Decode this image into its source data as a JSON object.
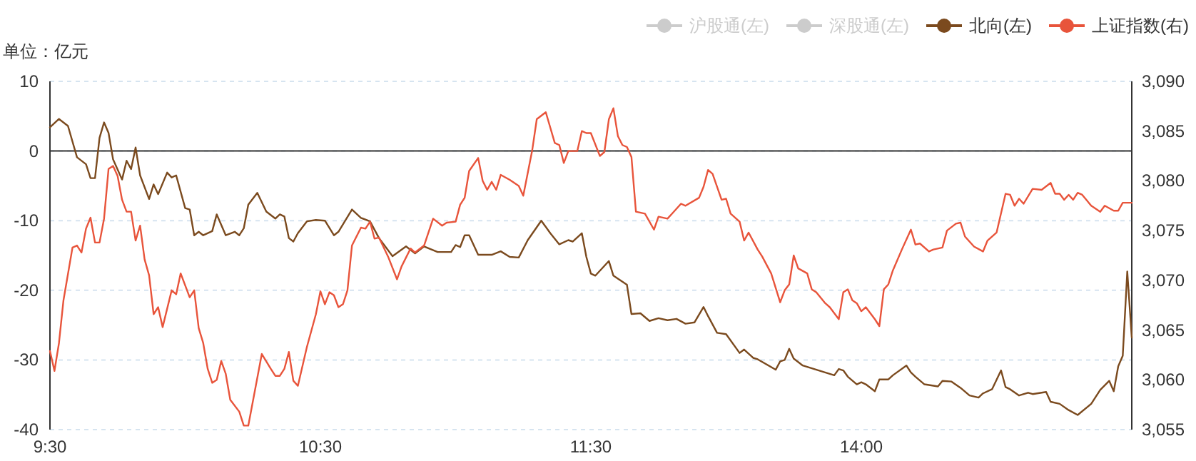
{
  "chart_data": {
    "type": "line",
    "ylabel": "单位：亿元",
    "legend": "top right",
    "grid": "y",
    "categories": [
      "9:30",
      null,
      null,
      null,
      null,
      null,
      null,
      null,
      null,
      null,
      null,
      null,
      null,
      null,
      null,
      null,
      null,
      null,
      null,
      null,
      null,
      null,
      null,
      null,
      null,
      null,
      null,
      null,
      null,
      null,
      null,
      null,
      null,
      null,
      null,
      null,
      null,
      null,
      null,
      null,
      null,
      null,
      null,
      null,
      null,
      null,
      null,
      null,
      null,
      null,
      null,
      null,
      null,
      null,
      null,
      null,
      null,
      null,
      null,
      null,
      "10:30",
      null,
      null,
      null,
      null,
      null,
      null,
      null,
      null,
      null,
      null,
      null,
      null,
      null,
      null,
      null,
      null,
      null,
      null,
      null,
      null,
      null,
      null,
      null,
      null,
      null,
      null,
      null,
      null,
      null,
      null,
      null,
      null,
      null,
      null,
      null,
      null,
      null,
      null,
      null,
      null,
      null,
      null,
      null,
      null,
      null,
      null,
      null,
      null,
      null,
      null,
      null,
      null,
      null,
      null,
      null,
      null,
      null,
      null,
      null,
      "11:30",
      null,
      null,
      null,
      null,
      null,
      null,
      null,
      null,
      null,
      null,
      null,
      null,
      null,
      null,
      null,
      null,
      null,
      null,
      null,
      null,
      null,
      null,
      null,
      null,
      null,
      null,
      null,
      null,
      null,
      null,
      null,
      null,
      null,
      null,
      null,
      null,
      null,
      null,
      null,
      null,
      null,
      null,
      null,
      null,
      null,
      null,
      null,
      null,
      null,
      null,
      null,
      null,
      null,
      null,
      null,
      null,
      null,
      null,
      null,
      "14:00",
      null,
      null,
      null,
      null,
      null,
      null,
      null,
      null,
      null,
      null,
      null,
      null,
      null,
      null,
      null,
      null,
      null,
      null,
      null,
      null,
      null,
      null,
      null,
      null,
      null,
      null,
      null,
      null,
      null,
      null,
      null,
      null,
      null,
      null,
      null,
      null,
      null,
      null,
      null,
      null,
      null,
      null,
      null,
      null,
      null,
      null,
      null,
      null,
      null,
      null,
      null,
      null,
      null,
      null,
      null,
      null,
      null,
      null,
      null,
      null
    ],
    "ylim": [
      -40,
      10
    ],
    "yticks": [
      -40,
      -30,
      -20,
      -10,
      0,
      10
    ],
    "y2lim": [
      3055,
      3090
    ],
    "y2ticks": [
      {
        "value": 3055,
        "label": "3,055"
      },
      {
        "value": 3060,
        "label": "3,060"
      },
      {
        "value": 3065,
        "label": "3,065"
      },
      {
        "value": 3070,
        "label": "3,070"
      },
      {
        "value": 3075,
        "label": "3,075"
      },
      {
        "value": 3080,
        "label": "3,080"
      },
      {
        "value": 3085,
        "label": "3,085"
      },
      {
        "value": 3090,
        "label": "3,090"
      }
    ],
    "ref_lines": [
      {
        "axis": "y",
        "value": 0,
        "color": "#333333"
      }
    ],
    "series": [
      {
        "name": "沪股通(左)",
        "color": "#cccccc",
        "values": [
          null,
          null,
          null,
          null,
          null,
          null,
          null,
          null,
          null,
          null,
          null,
          null,
          null,
          null,
          null,
          null,
          null,
          null,
          null,
          null,
          null,
          null,
          null,
          null,
          null,
          null,
          null,
          null,
          null,
          null,
          null,
          null,
          null,
          null,
          null,
          null,
          null,
          null,
          null,
          null,
          null,
          null,
          null,
          null,
          null,
          null,
          null,
          null,
          null,
          null,
          null,
          null,
          null,
          null,
          null,
          null,
          null,
          null,
          null,
          null,
          null,
          null,
          null,
          null,
          null,
          null,
          null,
          null,
          null,
          null,
          null,
          null,
          null,
          null,
          null,
          null,
          null,
          null,
          null,
          null,
          null,
          null,
          null,
          null,
          null,
          null,
          null,
          null,
          null,
          null,
          null,
          null,
          null,
          null,
          null,
          null,
          null,
          null,
          null,
          null,
          null,
          null,
          null,
          null,
          null,
          null,
          null,
          null,
          null,
          null,
          null,
          null,
          null,
          null,
          null,
          null,
          null,
          null,
          null,
          null,
          null,
          null,
          null,
          null,
          null,
          null,
          null,
          null,
          null,
          null,
          null,
          null,
          null,
          null,
          null,
          null,
          null,
          null,
          null,
          null,
          null,
          null,
          null,
          null,
          null,
          null,
          null,
          null,
          null,
          null,
          null,
          null,
          null,
          null,
          null,
          null,
          null,
          null,
          null,
          null,
          null,
          null,
          null,
          null,
          null,
          null,
          null,
          null,
          null,
          null,
          null,
          null,
          null,
          null,
          null,
          null,
          null,
          null,
          null,
          null,
          null,
          null,
          null,
          null,
          null,
          null,
          null,
          null,
          null,
          null,
          null,
          null,
          null,
          null,
          null,
          null,
          null,
          null,
          null,
          null,
          null,
          null,
          null,
          null,
          null,
          null,
          null,
          null,
          null,
          null,
          null,
          null,
          null,
          null,
          null,
          null,
          null,
          null,
          null,
          null,
          null,
          null,
          null,
          null,
          null,
          null,
          null,
          null,
          null,
          null,
          null,
          null,
          null,
          null,
          null,
          null,
          null,
          null,
          null,
          null,
          null
        ]
      },
      {
        "name": "深股通(左)",
        "color": "#cccccc",
        "values": [
          null,
          null,
          null,
          null,
          null,
          null,
          null,
          null,
          null,
          null,
          null,
          null,
          null,
          null,
          null,
          null,
          null,
          null,
          null,
          null,
          null,
          null,
          null,
          null,
          null,
          null,
          null,
          null,
          null,
          null,
          null,
          null,
          null,
          null,
          null,
          null,
          null,
          null,
          null,
          null,
          null,
          null,
          null,
          null,
          null,
          null,
          null,
          null,
          null,
          null,
          null,
          null,
          null,
          null,
          null,
          null,
          null,
          null,
          null,
          null,
          null,
          null,
          null,
          null,
          null,
          null,
          null,
          null,
          null,
          null,
          null,
          null,
          null,
          null,
          null,
          null,
          null,
          null,
          null,
          null,
          null,
          null,
          null,
          null,
          null,
          null,
          null,
          null,
          null,
          null,
          null,
          null,
          null,
          null,
          null,
          null,
          null,
          null,
          null,
          null,
          null,
          null,
          null,
          null,
          null,
          null,
          null,
          null,
          null,
          null,
          null,
          null,
          null,
          null,
          null,
          null,
          null,
          null,
          null,
          null,
          null,
          null,
          null,
          null,
          null,
          null,
          null,
          null,
          null,
          null,
          null,
          null,
          null,
          null,
          null,
          null,
          null,
          null,
          null,
          null,
          null,
          null,
          null,
          null,
          null,
          null,
          null,
          null,
          null,
          null,
          null,
          null,
          null,
          null,
          null,
          null,
          null,
          null,
          null,
          null,
          null,
          null,
          null,
          null,
          null,
          null,
          null,
          null,
          null,
          null,
          null,
          null,
          null,
          null,
          null,
          null,
          null,
          null,
          null,
          null,
          null,
          null,
          null,
          null,
          null,
          null,
          null,
          null,
          null,
          null,
          null,
          null,
          null,
          null,
          null,
          null,
          null,
          null,
          null,
          null,
          null,
          null,
          null,
          null,
          null,
          null,
          null,
          null,
          null,
          null,
          null,
          null,
          null,
          null,
          null,
          null,
          null,
          null,
          null,
          null,
          null,
          null,
          null,
          null,
          null,
          null,
          null,
          null,
          null,
          null,
          null,
          null,
          null,
          null,
          null,
          null,
          null,
          null,
          null,
          null,
          null
        ]
      },
      {
        "name": "北向(左)",
        "color": "#7b4a1e",
        "values": [
          3.4,
          null,
          4.6,
          null,
          3.6,
          null,
          -0.9,
          null,
          -1.9,
          -3.9,
          -3.9,
          1.9,
          4.1,
          2.6,
          -1.2,
          null,
          -4.1,
          -1.4,
          -2.6,
          0.5,
          -3.5,
          null,
          -6.9,
          -4.8,
          -6.2,
          null,
          -3.1,
          -3.8,
          -3.5,
          null,
          -8.2,
          -8.4,
          -12.1,
          -11.6,
          -12.1,
          null,
          -11.5,
          -9.1,
          null,
          -12.1,
          null,
          -11.6,
          -12.1,
          -11.1,
          -7.7,
          null,
          -6.0,
          null,
          -8.7,
          null,
          -9.7,
          -9.1,
          -9.4,
          -12.5,
          -13.0,
          -11.8,
          null,
          -10.1,
          null,
          -9.9,
          null,
          -10.0,
          null,
          -12.1,
          -11.6,
          null,
          null,
          -8.4,
          null,
          -9.6,
          null,
          -10.1,
          null,
          -12.5,
          null,
          null,
          -15.1,
          null,
          null,
          -13.7,
          null,
          -14.7,
          null,
          -13.7,
          null,
          null,
          -14.5,
          null,
          null,
          -14.5,
          -13.5,
          -13.8,
          -12.1,
          -12.1,
          null,
          -14.9,
          null,
          null,
          -14.9,
          null,
          -14.4,
          null,
          -15.2,
          null,
          -15.3,
          null,
          -12.8,
          null,
          null,
          -10.0,
          null,
          -11.8,
          null,
          -13.4,
          null,
          -12.8,
          -13.0,
          null,
          -11.8,
          -15.2,
          -17.6,
          -17.9,
          null,
          null,
          -15.8,
          -17.9,
          null,
          null,
          -19.2,
          -23.4,
          null,
          -23.3,
          null,
          -24.4,
          null,
          -24.0,
          null,
          -24.3,
          null,
          -24.1,
          null,
          -24.8,
          null,
          -24.6,
          null,
          -22.4,
          -23.7,
          null,
          -26.1,
          null,
          -26.3,
          null,
          null,
          -29.0,
          -28.5,
          null,
          -29.7,
          -29.9,
          null,
          null,
          null,
          -31.4,
          -30.2,
          -30.0,
          -28.4,
          -29.8,
          null,
          -30.8,
          null,
          null,
          null,
          null,
          null,
          null,
          -32.2,
          -31.3,
          -31.5,
          -32.4,
          null,
          -33.5,
          -33.2,
          -33.5,
          null,
          -34.5,
          -32.8,
          null,
          -32.8,
          -32.2,
          null,
          null,
          -30.8,
          -31.8,
          -32.4,
          null,
          -33.5,
          null,
          null,
          -33.8,
          -33.0,
          null,
          -33.1,
          null,
          -34.0,
          null,
          -35.1,
          null,
          -35.4,
          -34.8,
          null,
          -34.2,
          null,
          -31.5,
          -33.9,
          -34.2,
          null,
          -35.1,
          null,
          -34.7,
          -34.9,
          null,
          null,
          -34.6,
          -36.0,
          null,
          -36.3,
          null,
          -37.2,
          null,
          -37.9,
          null,
          null,
          -36.3,
          null,
          -34.3,
          null,
          -33.0,
          -34.5,
          -30.9,
          -29.4,
          -17.3,
          -26.8
        ]
      },
      {
        "name": "上证指数(右)",
        "color": "#e8543b",
        "axis": "y2",
        "values": [
          3062.9,
          3060.9,
          3063.7,
          3068.0,
          null,
          3073.3,
          3073.5,
          3072.8,
          3075.2,
          3076.3,
          3073.8,
          3073.8,
          3076.2,
          3081.2,
          3081.5,
          3080.5,
          3078.1,
          3076.9,
          3076.9,
          3074.0,
          3075.5,
          3072.1,
          3070.5,
          3066.6,
          3067.3,
          3065.3,
          null,
          3069.0,
          3068.6,
          3070.7,
          null,
          3068.3,
          3069.0,
          3065.2,
          3063.7,
          3061.1,
          3059.7,
          3060.0,
          3061.9,
          3060.6,
          3058.0,
          null,
          3056.8,
          3055.4,
          3055.4,
          null,
          null,
          3062.6,
          null,
          3061.1,
          3060.4,
          3060.4,
          3061.1,
          3062.8,
          3059.9,
          3059.4,
          null,
          3063.3,
          null,
          3066.6,
          3068.9,
          3067.6,
          3068.8,
          3068.5,
          3067.3,
          3067.6,
          3069.0,
          3073.5,
          null,
          3075.3,
          3075.2,
          3075.9,
          3074.2,
          3074.3,
          null,
          3072.4,
          null,
          3070.1,
          3071.4,
          null,
          3073.2,
          3072.8,
          null,
          3073.5,
          null,
          3076.2,
          null,
          3075.5,
          3075.8,
          null,
          3075.9,
          3077.6,
          3078.3,
          3081.0,
          null,
          3082.3,
          3080.0,
          3079.1,
          3079.9,
          3079.1,
          3080.6,
          null,
          3080.1,
          null,
          3079.5,
          3078.5,
          null,
          3083.1,
          3086.2,
          null,
          3086.9,
          null,
          3083.8,
          3083.6,
          3081.8,
          3083.0,
          null,
          3083.0,
          3085.0,
          3084.8,
          3084.8,
          null,
          3082.5,
          3082.9,
          3086.2,
          3087.3,
          3084.5,
          3083.6,
          3083.4,
          3082.4,
          3076.9,
          null,
          3076.7,
          null,
          3075.1,
          3076.4,
          null,
          3076.2,
          3076.7,
          null,
          3077.7,
          3077.5,
          null,
          null,
          3078.3,
          3079.4,
          3081.1,
          3080.7,
          null,
          3078.1,
          3078.2,
          3076.7,
          null,
          3075.9,
          3074.0,
          3074.8,
          null,
          3073.1,
          3072.4,
          null,
          3070.7,
          null,
          3067.8,
          3069.0,
          3069.6,
          3072.5,
          3071.2,
          null,
          3070.7,
          3069.1,
          3068.8,
          null,
          3067.7,
          3067.3,
          null,
          3066.1,
          3068.8,
          3069.1,
          3068.0,
          3067.7,
          3066.9,
          3067.3,
          null,
          3066.1,
          3065.4,
          3069.1,
          3069.6,
          3071.0,
          null,
          3073.1,
          null,
          3075.1,
          3073.6,
          3073.7,
          null,
          3072.9,
          3073.1,
          null,
          3073.3,
          3075.0,
          null,
          3075.7,
          3075.8,
          3074.4,
          null,
          3073.4,
          null,
          3072.9,
          3074.0,
          null,
          3074.8,
          null,
          3078.7,
          3078.6,
          3077.5,
          3078.2,
          3077.7,
          null,
          3079.2,
          null,
          3079.1,
          null,
          3079.8,
          3078.7,
          3078.7,
          3078.1,
          3078.6,
          3078.1,
          3078.8,
          3078.6,
          null,
          3077.5,
          null,
          3076.9,
          3077.5,
          null,
          3077.0,
          3077.0,
          3077.8,
          null,
          3077.8
        ]
      }
    ]
  }
}
